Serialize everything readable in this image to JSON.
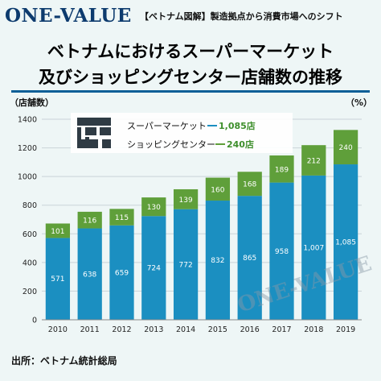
{
  "header": {
    "logo_text": "ONE-VALUE",
    "tagline": "【ベトナム図解】製造拠点から消費市場へのシフト"
  },
  "title": {
    "line1": "ベトナムにおけるスーパーマーケット",
    "line2": "及びショッピングセンター店舗数の推移"
  },
  "units": {
    "left": "（店舗数）",
    "right": "（%）"
  },
  "footer": {
    "source": "出所：ベトナム統計総局"
  },
  "watermark": {
    "text": "ONE-VALUE"
  },
  "legend": {
    "supermarket_label": "スーパーマーケット",
    "supermarket_value": "1,085店",
    "shopping_label": "ショッピングセンター",
    "shopping_value": "240店"
  },
  "colors": {
    "supermarket": "#1b8fc1",
    "shopping_center": "#5f9f3a",
    "brand": "#0d3b6e",
    "legend_value_green": "#3e8f2c"
  },
  "chart_data": {
    "type": "bar",
    "stacked": true,
    "categories": [
      "2010",
      "2011",
      "2012",
      "2013",
      "2014",
      "2015",
      "2016",
      "2017",
      "2018",
      "2019"
    ],
    "series": [
      {
        "name": "スーパーマーケット",
        "values": [
          571,
          638,
          659,
          724,
          772,
          832,
          865,
          958,
          1007,
          1085
        ],
        "labels": [
          "571",
          "638",
          "659",
          "724",
          "772",
          "832",
          "865",
          "958",
          "1,007",
          "1,085"
        ]
      },
      {
        "name": "ショッピングセンター",
        "values": [
          101,
          116,
          115,
          130,
          139,
          160,
          168,
          189,
          212,
          240
        ],
        "labels": [
          "101",
          "116",
          "115",
          "130",
          "139",
          "160",
          "168",
          "189",
          "212",
          "240"
        ]
      }
    ],
    "ylim": [
      0,
      1400
    ],
    "yticks": [
      0,
      200,
      400,
      600,
      800,
      1000,
      1200,
      1400
    ],
    "ytick_labels": [
      "0",
      "200",
      "400",
      "600",
      "800",
      "1000",
      "1200",
      "1400"
    ],
    "grid": true,
    "legend_position": "top-left"
  }
}
